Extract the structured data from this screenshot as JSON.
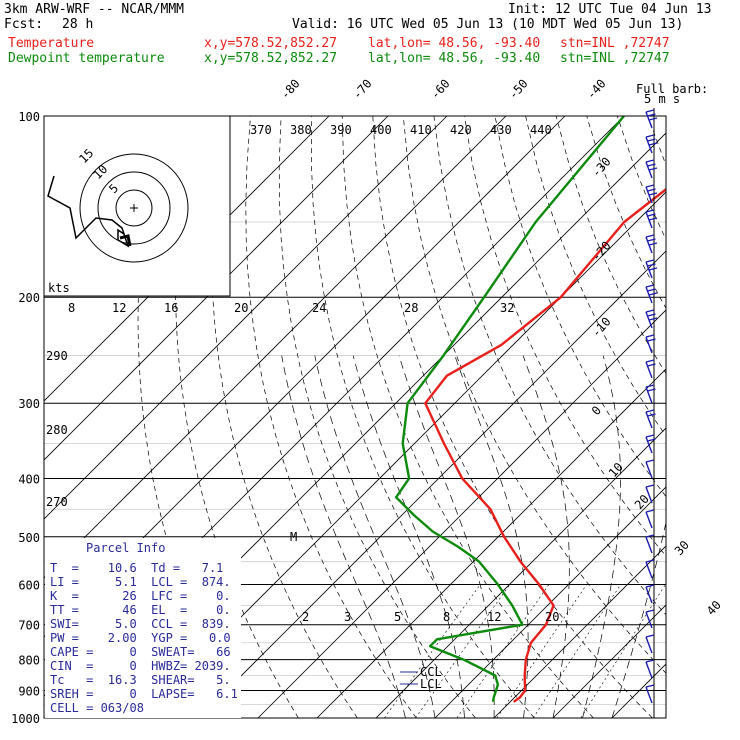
{
  "header": {
    "model": "3km ARW-WRF -- NCAR/MMM",
    "init": "Init: 12 UTC Tue 04 Jun 13",
    "fcst_label": "Fcst:",
    "fcst_value": "28 h",
    "valid": "Valid: 16 UTC Wed 05 Jun 13 (10 MDT Wed 05 Jun 13)",
    "temp_label": "Temperature",
    "dew_label": "Dewpoint temperature",
    "xy": "x,y=578.52,852.27",
    "latlon": "lat,lon= 48.56, -93.40",
    "stn": "stn=INL ,72747"
  },
  "colors": {
    "temperature": "#e8201c",
    "dewpoint": "#0c8a0c",
    "info": "#2a2a9a",
    "wind": "#1a1ab0"
  },
  "chart_data": {
    "type": "line",
    "chart_kind": "skew-T log-P",
    "pressure_levels": [
      100,
      200,
      300,
      400,
      500,
      600,
      700,
      800,
      900,
      1000
    ],
    "isotherm_labels": [
      "-80",
      "-70",
      "-60",
      "-50",
      "-40",
      "-30",
      "-20",
      "-10",
      "0",
      "10",
      "20",
      "30",
      "40"
    ],
    "theta_labels": [
      "370",
      "380",
      "390",
      "400",
      "410",
      "420",
      "430",
      "440"
    ],
    "hodograph_speed_labels": [
      "kts",
      "8",
      "12",
      "16",
      "20",
      "24",
      "28",
      "32"
    ],
    "hodograph_ring_labels": [
      "5",
      "10",
      "15"
    ],
    "other_theta_labels": [
      "290",
      "280",
      "270"
    ],
    "mixing_ratio_labels": [
      "2",
      "3",
      "5",
      "8",
      "12",
      "20"
    ],
    "barb_key_label": "Full barb:",
    "barb_key_value": "5 m s",
    "annotations": {
      "ccl": "CCL",
      "lcl": "LCL",
      "m": "M"
    },
    "series": [
      {
        "name": "Temperature",
        "pressure_hPa": [
          100,
          150,
          200,
          240,
          270,
          300,
          350,
          400,
          450,
          500,
          550,
          600,
          650,
          700,
          750,
          800,
          850,
          900,
          925,
          940
        ],
        "temperature_C": [
          -47,
          -52,
          -50,
          -52,
          -56,
          -55,
          -45,
          -36,
          -26,
          -19,
          -12,
          -5,
          1,
          3,
          3.5,
          5.5,
          8,
          10.6,
          10.9,
          10.6
        ]
      },
      {
        "name": "Dewpoint temperature",
        "pressure_hPa": [
          100,
          150,
          200,
          250,
          300,
          350,
          400,
          430,
          460,
          490,
          520,
          550,
          600,
          650,
          700,
          740,
          760,
          800,
          850,
          880,
          925,
          940
        ],
        "temperature_C": [
          -70,
          -67,
          -63,
          -60,
          -58,
          -52,
          -45,
          -44,
          -38,
          -32,
          -25,
          -19,
          -12,
          -6,
          -1,
          -13,
          -13,
          -5,
          3,
          5,
          6.5,
          7.1
        ]
      }
    ],
    "wind_barb_count": 24
  },
  "parcel_info": {
    "title": "Parcel Info",
    "rows": [
      "T  =    10.6  Td =   7.1",
      "LI =     5.1  LCL =  874.",
      "K  =      26  LFC =    0.",
      "TT =      46  EL  =    0.",
      "SWI=     5.0  CCL =  839.",
      "PW =    2.00  YGP =   0.0",
      "CAPE =     0  SWEAT=   66",
      "CIN  =     0  HWBZ= 2039.",
      "Tc   =  16.3  SHEAR=   5.",
      "SREH =     0  LAPSE=   6.1",
      "CELL = 063/08"
    ]
  }
}
